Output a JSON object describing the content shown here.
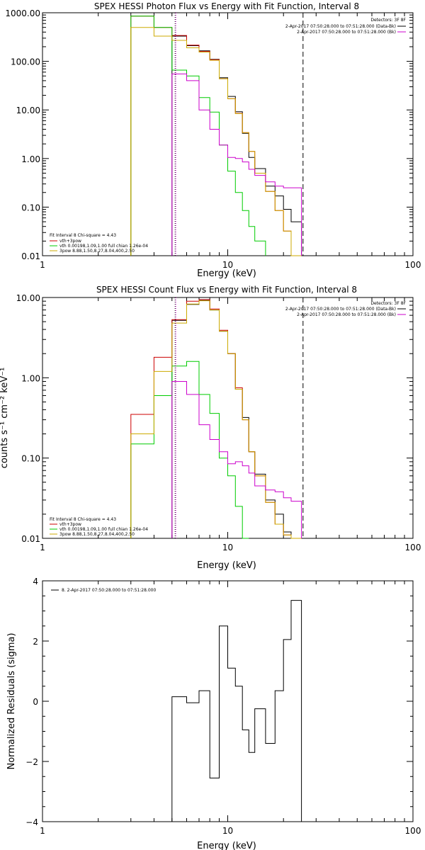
{
  "chart_data": [
    {
      "type": "line",
      "title": "SPEX HESSI Photon Flux vs Energy with Fit Function, Interval 8",
      "xlabel": "Energy (keV)",
      "ylabel": "",
      "xscale": "log",
      "yscale": "log",
      "xlim": [
        1,
        100
      ],
      "ylim": [
        0.01,
        1000
      ],
      "xticks": [
        "1",
        "10",
        "100"
      ],
      "yticks": [
        "1000.00",
        "100.00",
        "10.00",
        "1.00",
        "0.10",
        "0.01"
      ],
      "vlines": [
        {
          "x": 5.2,
          "style": "dotted",
          "color": "#000000"
        },
        {
          "x": 5.2,
          "style": "dotted",
          "color": "#cc00cc"
        },
        {
          "x": 25.5,
          "style": "dashed",
          "color": "#000000"
        }
      ],
      "legend_topright": {
        "header": "Detectors: 3F 8F",
        "entries": [
          {
            "label": "2-Apr-2017 07:50:28.000 to 07:51:28.000 (Data-Bk)",
            "color": "#000000"
          },
          {
            "label": "2-Apr-2017 07:50:28.000 to 07:51:28.000 (Bk)",
            "color": "#cc00cc"
          }
        ]
      },
      "legend_bottomleft": {
        "header": "Fit Interval 8   Chi-square = 4.43",
        "entries": [
          {
            "label": "vth+3pow",
            "color": "#cc0000"
          },
          {
            "label": "vth 0.00198,1.09,1.00  full chian 1.26e-04",
            "color": "#00cc00"
          },
          {
            "label": "3pow 8.88,1.50,8.27,8.04,400,2.50",
            "color": "#ccaa00"
          }
        ]
      },
      "edges": [
        3.0,
        4.0,
        5.0,
        6.0,
        7.0,
        8.0,
        9.0,
        10.0,
        11.0,
        12.0,
        13.0,
        14.0,
        16.0,
        18.0,
        20.0,
        22.0,
        25.0,
        28.0
      ],
      "series": [
        {
          "key": "data",
          "color": "#000000",
          "values": [
            null,
            null,
            330,
            210,
            165,
            110,
            46,
            19,
            9.2,
            3.3,
            1.05,
            0.62,
            0.27,
            0.17,
            0.09,
            0.05,
            null
          ]
        },
        {
          "key": "vth3pow",
          "color": "#cc0000",
          "values": [
            850,
            500,
            340,
            215,
            160,
            108,
            44,
            17,
            8.5,
            3.4,
            1.4,
            0.5,
            0.21,
            0.085,
            0.032,
            0.01,
            null
          ]
        },
        {
          "key": "vth",
          "color": "#00cc00",
          "values": [
            850,
            500,
            66,
            50,
            18,
            9.0,
            1.9,
            0.55,
            0.2,
            0.085,
            0.04,
            0.02,
            null,
            null,
            null,
            null,
            null
          ]
        },
        {
          "key": "3pow",
          "color": "#ccaa00",
          "values": [
            500,
            330,
            270,
            190,
            155,
            105,
            44,
            17,
            8.4,
            3.4,
            1.4,
            0.5,
            0.21,
            0.085,
            0.032,
            0.01,
            null
          ]
        },
        {
          "key": "bk",
          "color": "#cc00cc",
          "values": [
            null,
            null,
            55,
            40,
            10,
            4.0,
            1.9,
            1.05,
            1.0,
            0.85,
            0.6,
            0.45,
            0.33,
            0.27,
            0.25,
            0.25,
            null
          ]
        }
      ]
    },
    {
      "type": "line",
      "title": "SPEX HESSI Count Flux vs Energy with Fit Function, Interval 8",
      "xlabel": "Energy (keV)",
      "ylabel": "counts s⁻¹ cm⁻² keV⁻¹",
      "xscale": "log",
      "yscale": "log",
      "xlim": [
        1,
        100
      ],
      "ylim": [
        0.01,
        10
      ],
      "xticks": [
        "1",
        "10",
        "100"
      ],
      "yticks": [
        "10.00",
        "1.00",
        "0.10",
        "0.01"
      ],
      "vlines": [
        {
          "x": 5.2,
          "style": "dotted",
          "color": "#000000"
        },
        {
          "x": 5.2,
          "style": "dotted",
          "color": "#cc00cc"
        },
        {
          "x": 25.5,
          "style": "dashed",
          "color": "#000000"
        }
      ],
      "legend_topright": {
        "header": "Detectors: 3F 8F",
        "entries": [
          {
            "label": "2-Apr-2017 07:50:28.000 to 07:51:28.000 (Data-Bk)",
            "color": "#000000"
          },
          {
            "label": "2-Apr-2017 07:50:28.000 to 07:51:28.000 (Bk)",
            "color": "#cc00cc"
          }
        ]
      },
      "legend_bottomleft": {
        "header": "Fit Interval 8   Chi-square = 4.43",
        "entries": [
          {
            "label": "vth+3pow",
            "color": "#cc0000"
          },
          {
            "label": "vth 0.00198,1.09,1.00  full chian 1.26e-04",
            "color": "#00cc00"
          },
          {
            "label": "3pow 8.88,1.50,8.27,8.04,400,2.50",
            "color": "#ccaa00"
          }
        ]
      },
      "edges": [
        3.0,
        4.0,
        5.0,
        6.0,
        7.0,
        8.0,
        9.0,
        10.0,
        11.0,
        12.0,
        13.0,
        14.0,
        16.0,
        18.0,
        20.0,
        22.0,
        25.0,
        28.0
      ],
      "series": [
        {
          "key": "data",
          "color": "#000000",
          "values": [
            null,
            null,
            5.2,
            8.2,
            9.2,
            7.0,
            3.8,
            2.0,
            0.72,
            0.32,
            0.12,
            0.063,
            0.03,
            0.02,
            0.012,
            0.01,
            null
          ]
        },
        {
          "key": "vth3pow",
          "color": "#cc0000",
          "values": [
            0.35,
            1.8,
            5.3,
            9.0,
            9.4,
            7.2,
            3.9,
            2.0,
            0.75,
            0.3,
            0.12,
            0.06,
            0.028,
            0.015,
            0.011,
            0.01,
            null
          ]
        },
        {
          "key": "vth",
          "color": "#00cc00",
          "values": [
            0.15,
            0.6,
            1.4,
            1.6,
            0.62,
            0.36,
            0.1,
            0.06,
            0.025,
            0.01,
            null,
            null,
            null,
            null,
            null,
            null,
            null
          ]
        },
        {
          "key": "3pow",
          "color": "#ccaa00",
          "values": [
            0.2,
            1.2,
            4.8,
            8.3,
            9.1,
            7.0,
            3.8,
            2.0,
            0.72,
            0.3,
            0.12,
            0.06,
            0.028,
            0.015,
            0.011,
            0.01,
            null
          ]
        },
        {
          "key": "bk",
          "color": "#cc00cc",
          "values": [
            null,
            null,
            0.9,
            0.62,
            0.26,
            0.17,
            0.12,
            0.085,
            0.09,
            0.08,
            0.065,
            0.045,
            0.04,
            0.038,
            0.032,
            0.029,
            null
          ]
        }
      ]
    },
    {
      "type": "line",
      "title": "",
      "xlabel": "Energy (keV)",
      "ylabel": "Normalized Residuals (sigma)",
      "xscale": "log",
      "yscale": "linear",
      "xlim": [
        1,
        100
      ],
      "ylim": [
        -4,
        4
      ],
      "xticks": [
        "1",
        "10",
        "100"
      ],
      "yticks": [
        "4",
        "2",
        "0",
        "−2",
        "−4"
      ],
      "legend": {
        "label": "8. 2-Apr-2017 07:50:28.000 to 07:51:28.000",
        "color": "#000000"
      },
      "edges": [
        5.0,
        6.0,
        7.0,
        8.0,
        9.0,
        10.0,
        11.0,
        12.0,
        13.0,
        14.0,
        16.0,
        18.0,
        20.0,
        22.0,
        25.0
      ],
      "series": [
        {
          "key": "residuals",
          "color": "#000000",
          "values": [
            0.15,
            -0.05,
            0.35,
            -2.55,
            2.5,
            1.1,
            0.5,
            -0.95,
            -1.7,
            -0.25,
            -1.4,
            0.35,
            2.05,
            3.35
          ]
        }
      ]
    }
  ]
}
